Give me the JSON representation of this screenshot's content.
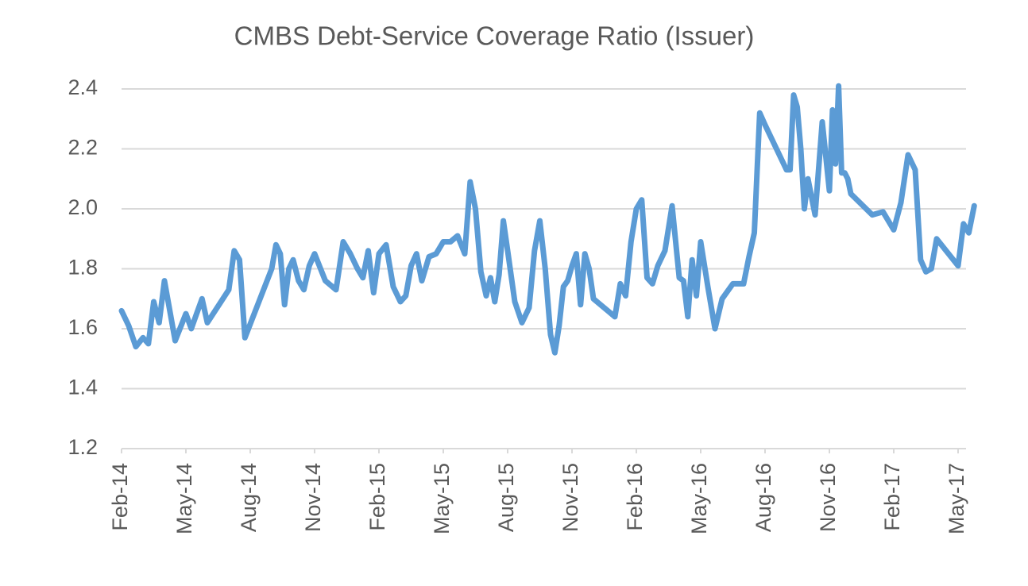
{
  "chart_data": {
    "type": "line",
    "title": "CMBS Debt-Service Coverage Ratio (Issuer)",
    "x": [
      "2014-02",
      "2014-02",
      "2014-02",
      "2014-03",
      "2014-03",
      "2014-03",
      "2014-03",
      "2014-04",
      "2014-04",
      "2014-05",
      "2014-05",
      "2014-05",
      "2014-05",
      "2014-06",
      "2014-07",
      "2014-07",
      "2014-07",
      "2014-07",
      "2014-09",
      "2014-09",
      "2014-09",
      "2014-09",
      "2014-09",
      "2014-10",
      "2014-10",
      "2014-10",
      "2014-10",
      "2014-11",
      "2014-11",
      "2014-12",
      "2014-12",
      "2014-12",
      "2015-01",
      "2015-01",
      "2015-01",
      "2015-01",
      "2015-02",
      "2015-02",
      "2015-02",
      "2015-03",
      "2015-03",
      "2015-03",
      "2015-03",
      "2015-04",
      "2015-04",
      "2015-04",
      "2015-05",
      "2015-05",
      "2015-05",
      "2015-06",
      "2015-06",
      "2015-06",
      "2015-06",
      "2015-07",
      "2015-07",
      "2015-07",
      "2015-07",
      "2015-07",
      "2015-08",
      "2015-08",
      "2015-08",
      "2015-09",
      "2015-09",
      "2015-09",
      "2015-09",
      "2015-10",
      "2015-10",
      "2015-10",
      "2015-10",
      "2015-10",
      "2015-11",
      "2015-11",
      "2015-11",
      "2015-11",
      "2015-11",
      "2015-12",
      "2016-01",
      "2016-01",
      "2016-01",
      "2016-01",
      "2016-02",
      "2016-02",
      "2016-02",
      "2016-02",
      "2016-03",
      "2016-03",
      "2016-03",
      "2016-04",
      "2016-04",
      "2016-04",
      "2016-04",
      "2016-04",
      "2016-05",
      "2016-05",
      "2016-05",
      "2016-06",
      "2016-06",
      "2016-07",
      "2016-07",
      "2016-07",
      "2016-07",
      "2016-08",
      "2016-09",
      "2016-09",
      "2016-09",
      "2016-09",
      "2016-09",
      "2016-09",
      "2016-10",
      "2016-10",
      "2016-10",
      "2016-11",
      "2016-11",
      "2016-11",
      "2016-11",
      "2016-11",
      "2016-11",
      "2016-11",
      "2016-12",
      "2017-01",
      "2017-01",
      "2017-02",
      "2017-02",
      "2017-02",
      "2017-03",
      "2017-03",
      "2017-03",
      "2017-03",
      "2017-04",
      "2017-05",
      "2017-05",
      "2017-05",
      "2017-05"
    ],
    "series": [
      {
        "name": "CMBS Debt-Service Coverage Ratio (Issuer)",
        "color": "#5b9bd5",
        "values": [
          1.66,
          1.61,
          1.54,
          1.57,
          1.55,
          1.69,
          1.62,
          1.76,
          1.56,
          1.65,
          1.6,
          1.65,
          1.7,
          1.62,
          1.73,
          1.86,
          1.83,
          1.57,
          1.8,
          1.88,
          1.85,
          1.68,
          1.8,
          1.83,
          1.76,
          1.73,
          1.81,
          1.85,
          1.76,
          1.73,
          1.89,
          1.85,
          1.8,
          1.77,
          1.86,
          1.72,
          1.85,
          1.88,
          1.74,
          1.69,
          1.71,
          1.81,
          1.85,
          1.76,
          1.84,
          1.85,
          1.89,
          1.89,
          1.91,
          1.85,
          2.09,
          2.0,
          1.79,
          1.71,
          1.77,
          1.69,
          1.78,
          1.96,
          1.86,
          1.69,
          1.62,
          1.67,
          1.86,
          1.96,
          1.8,
          1.58,
          1.52,
          1.61,
          1.74,
          1.76,
          1.81,
          1.85,
          1.68,
          1.85,
          1.8,
          1.7,
          1.64,
          1.75,
          1.71,
          1.89,
          2.0,
          2.03,
          1.77,
          1.75,
          1.81,
          1.86,
          2.01,
          1.77,
          1.76,
          1.64,
          1.83,
          1.71,
          1.89,
          1.74,
          1.6,
          1.7,
          1.75,
          1.75,
          1.84,
          1.92,
          2.32,
          2.28,
          2.13,
          2.13,
          2.38,
          2.34,
          2.2,
          2.0,
          2.1,
          1.98,
          2.29,
          2.06,
          2.33,
          2.15,
          2.41,
          2.12,
          2.12,
          2.1,
          2.05,
          1.98,
          1.99,
          1.93,
          2.02,
          2.18,
          2.13,
          1.83,
          1.79,
          1.8,
          1.9,
          1.81,
          1.95,
          1.92,
          2.01
        ]
      }
    ],
    "xlim": [
      "2014-02",
      "2017-06"
    ],
    "xticks": [
      {
        "value": "2014-02",
        "label": "Feb-14"
      },
      {
        "value": "2014-05",
        "label": "May-14"
      },
      {
        "value": "2014-08",
        "label": "Aug-14"
      },
      {
        "value": "2014-11",
        "label": "Nov-14"
      },
      {
        "value": "2015-02",
        "label": "Feb-15"
      },
      {
        "value": "2015-05",
        "label": "May-15"
      },
      {
        "value": "2015-08",
        "label": "Aug-15"
      },
      {
        "value": "2015-11",
        "label": "Nov-15"
      },
      {
        "value": "2016-02",
        "label": "Feb-16"
      },
      {
        "value": "2016-05",
        "label": "May-16"
      },
      {
        "value": "2016-08",
        "label": "Aug-16"
      },
      {
        "value": "2016-11",
        "label": "Nov-16"
      },
      {
        "value": "2017-02",
        "label": "Feb-17"
      },
      {
        "value": "2017-05",
        "label": "May-17"
      }
    ],
    "ylim": [
      1.2,
      2.4
    ],
    "yticks": [
      1.2,
      1.4,
      1.6,
      1.8,
      {
        "value": 2,
        "label": "2.0"
      },
      2.2,
      2.4
    ],
    "grid": true
  }
}
